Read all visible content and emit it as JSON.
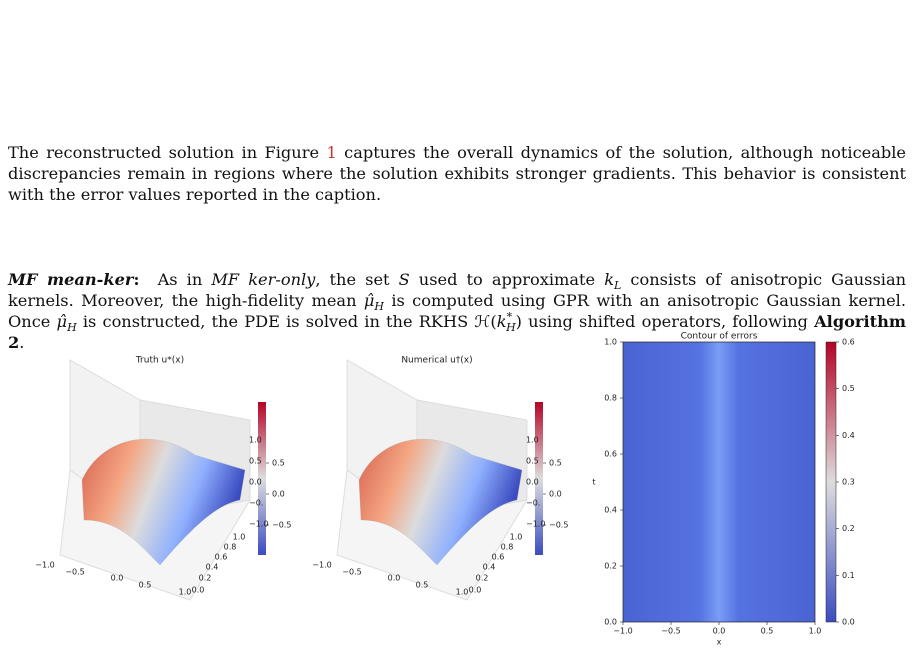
{
  "paragraphs": [
    [
      "The reconstructed solution in Figure ",
      "1",
      " captures the overall dynamics of the solution, although noticeable discrepancies remain in regions where the solution exhibits stronger gradients. This behavior is consistent with the error values reported in the caption."
    ],
    [
      "MF mean-ker",
      ":",
      "  As in ",
      "MF ker-only",
      ", the set ",
      "S",
      " used to approximate ",
      "k",
      "L",
      " consists of anisotropic Gaussian kernels. Moreover, the high-fidelity mean ",
      "μ̂",
      "H",
      " is computed using GPR with an anisotropic Gaussian kernel. Once ",
      "μ̂",
      "H",
      " is constructed, the PDE is solved in the RKHS ",
      "ℋ(",
      "k",
      "*",
      "H",
      ")",
      " using shifted operators, following ",
      "Algorithm 2",
      "."
    ]
  ],
  "figure": {
    "surface_panels": [
      {
        "title": "Truth u*(x)"
      },
      {
        "title": "Numerical u†(x)"
      }
    ],
    "surface_x_ticks": [
      "−1.0",
      "−0.5",
      "0.0",
      "0.5",
      "1.0"
    ],
    "surface_y_ticks": [
      "0.0",
      "0.2",
      "0.4",
      "0.6",
      "0.8",
      "1.0"
    ],
    "surface_z_ticks": [
      "1.0",
      "0.5",
      "0.0",
      "−0.",
      "−1.0"
    ],
    "surface_colorbar_ticks": [
      "0.5",
      "0.0",
      "−0.5"
    ],
    "contour": {
      "title": "Contour of errors",
      "xlabel": "x",
      "ylabel": "t",
      "x_ticks": [
        "−1.0",
        "−0.5",
        "0.0",
        "0.5",
        "1.0"
      ],
      "y_ticks": [
        "0.0",
        "0.2",
        "0.4",
        "0.6",
        "0.8",
        "1.0"
      ],
      "colorbar_ticks": [
        "0.0",
        "0.1",
        "0.2",
        "0.3",
        "0.4",
        "0.5",
        "0.6"
      ]
    }
  }
}
